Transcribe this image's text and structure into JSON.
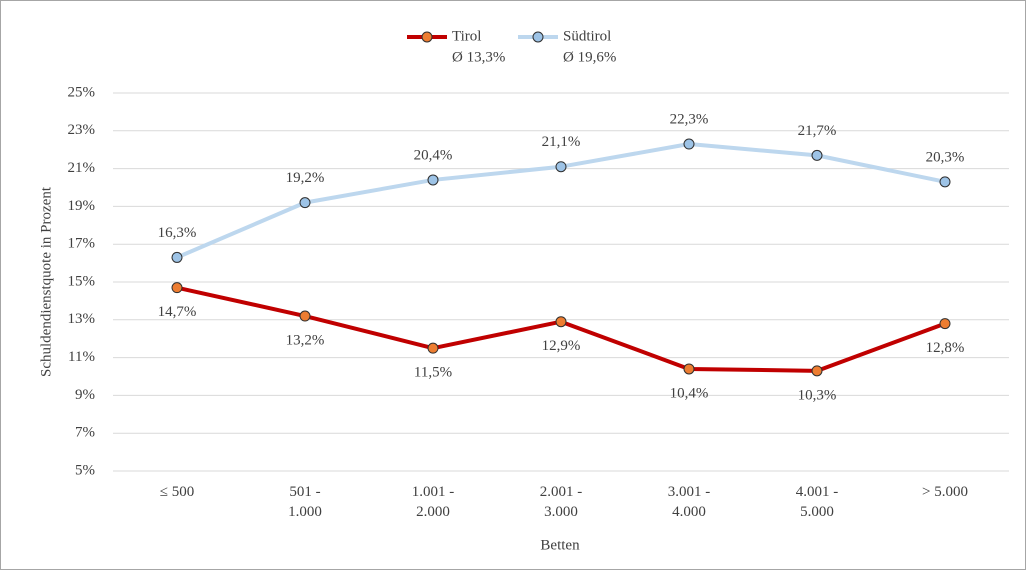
{
  "chart_data": {
    "type": "line",
    "x_label": "Betten",
    "y_label": "Schuldendienstquote in Prozent",
    "categories": [
      "≤ 500",
      "501 -\n1.000",
      "1.001 -\n2.000",
      "2.001 -\n3.000",
      "3.001 -\n4.000",
      "4.001 -\n5.000",
      "> 5.000"
    ],
    "series": [
      {
        "name": "Tirol",
        "average_label": "Ø 13,3%",
        "color": "#c00000",
        "marker_color": "#ed7d31",
        "values": [
          14.7,
          13.2,
          11.5,
          12.9,
          10.4,
          10.3,
          12.8
        ],
        "value_labels": [
          "14,7%",
          "13,2%",
          "11,5%",
          "12,9%",
          "10,4%",
          "10,3%",
          "12,8%"
        ]
      },
      {
        "name": "Südtirol",
        "average_label": "Ø 19,6%",
        "color": "#bdd7ee",
        "marker_color": "#9dc3e6",
        "values": [
          16.3,
          19.2,
          20.4,
          21.1,
          22.3,
          21.7,
          20.3
        ],
        "value_labels": [
          "16,3%",
          "19,2%",
          "20,4%",
          "21,1%",
          "22,3%",
          "21,7%",
          "20,3%"
        ]
      }
    ],
    "ylim": [
      5,
      25
    ],
    "yticks": [
      {
        "value": 5,
        "label": "5%"
      },
      {
        "value": 7,
        "label": "7%"
      },
      {
        "value": 9,
        "label": "9%"
      },
      {
        "value": 11,
        "label": "11%"
      },
      {
        "value": 13,
        "label": "13%"
      },
      {
        "value": 15,
        "label": "15%"
      },
      {
        "value": 17,
        "label": "17%"
      },
      {
        "value": 19,
        "label": "19%"
      },
      {
        "value": 21,
        "label": "21%"
      },
      {
        "value": 23,
        "label": "23%"
      },
      {
        "value": 25,
        "label": "25%"
      }
    ],
    "grid": true
  }
}
